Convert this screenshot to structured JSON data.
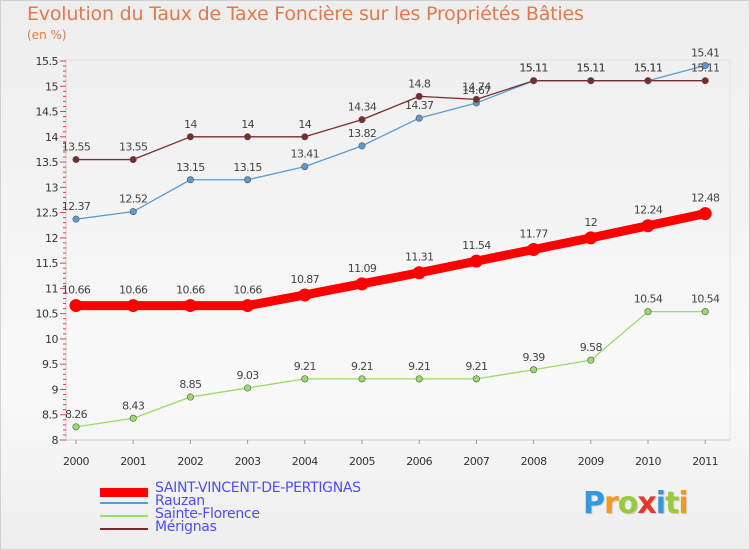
{
  "chart_data": {
    "type": "line",
    "title": "Evolution du Taux de Taxe Foncière sur les Propriétés Bâties",
    "subtitle": "(en %)",
    "xlabel": "",
    "ylabel": "",
    "categories": [
      "2000",
      "2001",
      "2002",
      "2003",
      "2004",
      "2005",
      "2006",
      "2007",
      "2008",
      "2009",
      "2010",
      "2011"
    ],
    "ylim": [
      8,
      15.5
    ],
    "yticks": [
      "8",
      "8.5",
      "9",
      "9.5",
      "10",
      "10.5",
      "11",
      "11.5",
      "12",
      "12.5",
      "13",
      "13.5",
      "14",
      "14.5",
      "15",
      "15.5"
    ],
    "grid": false,
    "legend_position": "bottom-left",
    "series": [
      {
        "name": "SAINT-VINCENT-DE-PERTIGNAS",
        "color": "#ff0000",
        "values": [
          10.66,
          10.66,
          10.66,
          10.66,
          10.87,
          11.09,
          11.31,
          11.54,
          11.77,
          12,
          12.24,
          12.48
        ],
        "labels": [
          "10.66",
          "10.66",
          "10.66",
          "10.66",
          "10.87",
          "11.09",
          "11.31",
          "11.54",
          "11.77",
          "12",
          "12.24",
          "12.48"
        ]
      },
      {
        "name": "Rauzan",
        "color": "#5b9bd5",
        "values": [
          12.37,
          12.52,
          13.15,
          13.15,
          13.41,
          13.82,
          14.37,
          14.67,
          15.11,
          15.11,
          15.11,
          15.41
        ],
        "labels": [
          "12.37",
          "12.52",
          "13.15",
          "13.15",
          "13.41",
          "13.82",
          "14.37",
          "14.67",
          "15.11",
          "15.11",
          "15.11",
          "15.41"
        ]
      },
      {
        "name": "Sainte-Florence",
        "color": "#99dd66",
        "values": [
          8.26,
          8.43,
          8.85,
          9.03,
          9.21,
          9.21,
          9.21,
          9.21,
          9.39,
          9.58,
          10.54,
          10.54
        ],
        "labels": [
          "8.26",
          "8.43",
          "8.85",
          "9.03",
          "9.21",
          "9.21",
          "9.21",
          "9.21",
          "9.39",
          "9.58",
          "10.54",
          "10.54"
        ]
      },
      {
        "name": "Mérignas",
        "color": "#7a2c2c",
        "values": [
          13.55,
          13.55,
          14,
          14,
          14,
          14.34,
          14.8,
          14.74,
          15.11,
          15.11,
          15.11,
          15.11
        ],
        "labels": [
          "13.55",
          "13.55",
          "14",
          "14",
          "14",
          "14.34",
          "14.8",
          "14.74",
          "15.11",
          "15.11",
          "15.11",
          "15.11"
        ]
      }
    ]
  },
  "logo": {
    "letters": [
      "P",
      "r",
      "o",
      "x",
      "i",
      "t",
      "i"
    ],
    "colors": [
      "#3399dd",
      "#f29c1f",
      "#9bc93d",
      "#e03a2f",
      "#3399dd",
      "#9bc93d",
      "#f29c1f"
    ]
  }
}
